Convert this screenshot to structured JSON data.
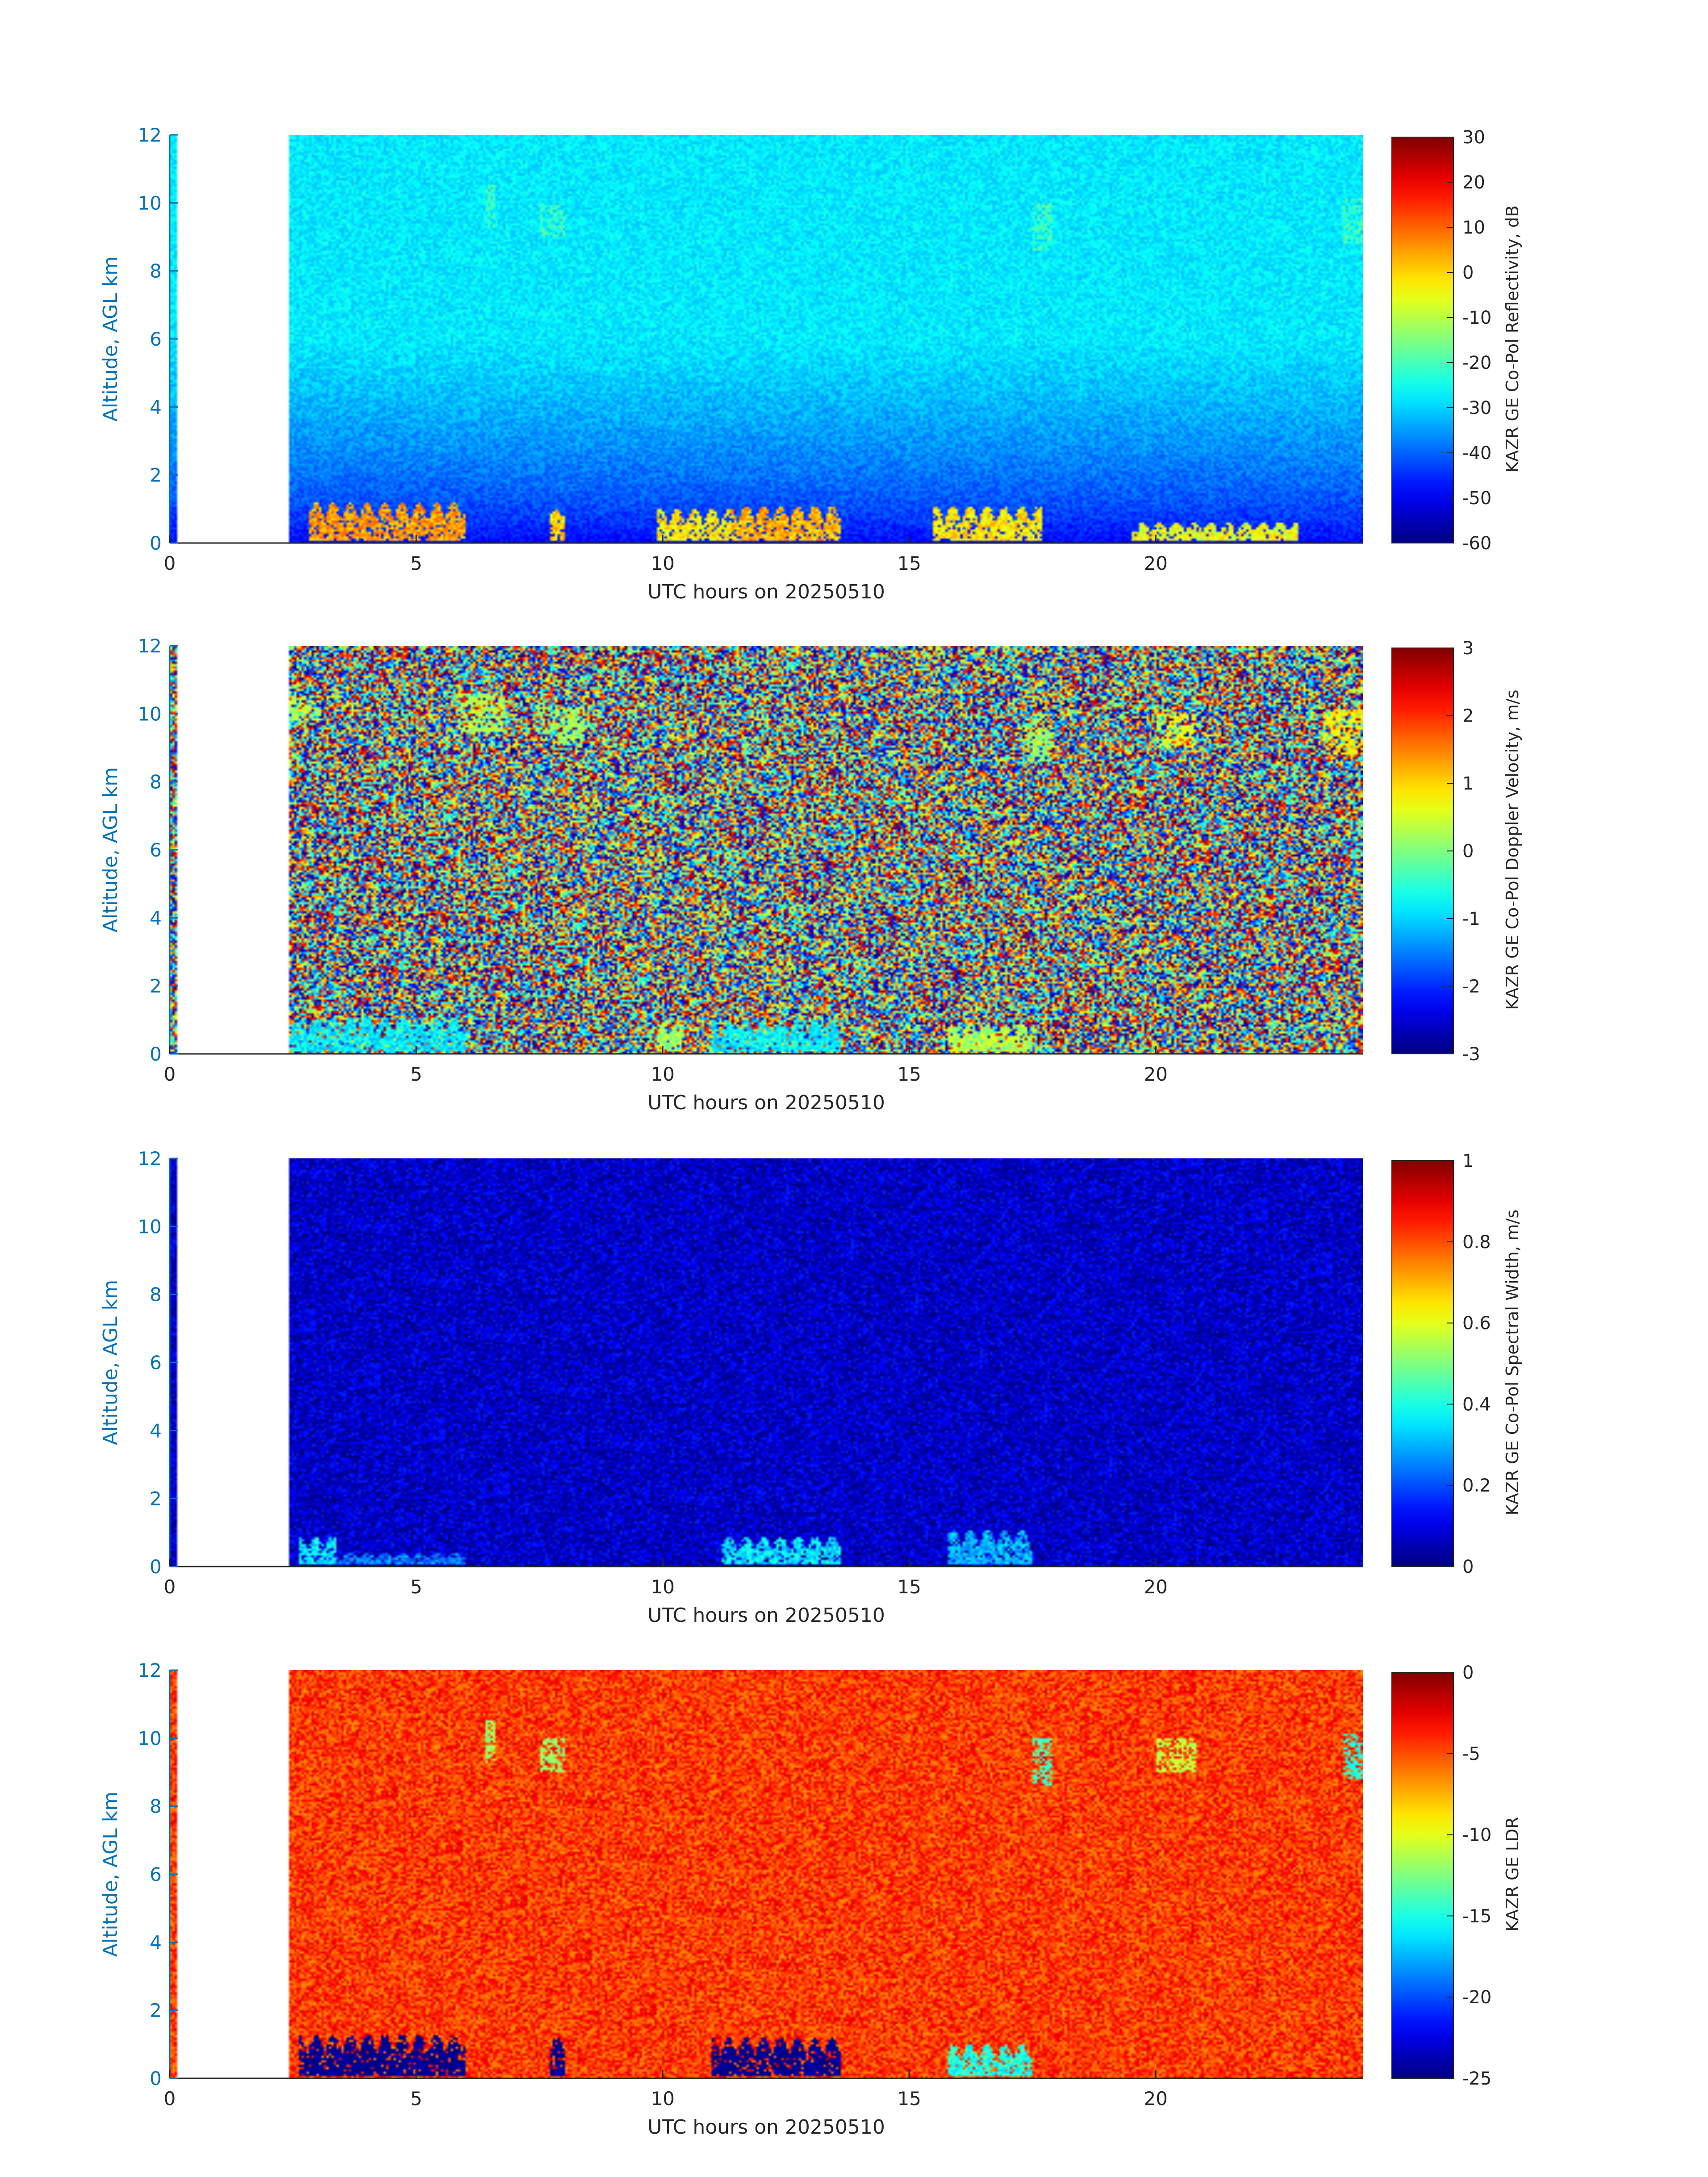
{
  "chart_data": [
    {
      "type": "heatmap",
      "xlabel": "UTC hours on 20250510",
      "ylabel": "Altitude, AGL km",
      "xlim": [
        0,
        24.2
      ],
      "ylim": [
        0,
        12
      ],
      "xticks": [
        0,
        5,
        10,
        15,
        20
      ],
      "yticks": [
        0,
        2,
        4,
        6,
        8,
        10,
        12
      ],
      "colormap": "jet",
      "colorbar": {
        "label": "KAZR GE Co-Pol Reflectivity, dB",
        "range": [
          -60,
          30
        ],
        "ticks": [
          -60,
          -50,
          -40,
          -30,
          -20,
          -10,
          0,
          10,
          20,
          30
        ]
      },
      "data_gap_hours": [
        0.15,
        2.4
      ],
      "background_level": -28,
      "near_surface_level": -50,
      "cloud_segments": [
        {
          "x": [
            2.8,
            6.0
          ],
          "y_top": 1.2,
          "level": 5
        },
        {
          "x": [
            7.7,
            8.0
          ],
          "y_top": 1.1,
          "level": 0
        },
        {
          "x": [
            9.9,
            11.4
          ],
          "y_top": 1.0,
          "level": -2
        },
        {
          "x": [
            11.4,
            13.6
          ],
          "y_top": 1.1,
          "level": 3
        },
        {
          "x": [
            15.5,
            17.7
          ],
          "y_top": 1.1,
          "level": -2
        },
        {
          "x": [
            19.5,
            22.9
          ],
          "y_top": 0.6,
          "level": -5
        }
      ],
      "high_features": [
        {
          "x": [
            6.4,
            6.6
          ],
          "y": [
            9.3,
            10.5
          ],
          "level": -20
        },
        {
          "x": [
            7.5,
            8.0
          ],
          "y": [
            9.0,
            10.0
          ],
          "level": -20
        },
        {
          "x": [
            17.5,
            17.9
          ],
          "y": [
            8.6,
            10.0
          ],
          "level": -20
        },
        {
          "x": [
            23.8,
            24.2
          ],
          "y": [
            8.8,
            10.1
          ],
          "level": -20
        }
      ]
    },
    {
      "type": "heatmap",
      "xlabel": "UTC hours on 20250510",
      "ylabel": "Altitude, AGL km",
      "xlim": [
        0,
        24.2
      ],
      "ylim": [
        0,
        12
      ],
      "xticks": [
        0,
        5,
        10,
        15,
        20
      ],
      "yticks": [
        0,
        2,
        4,
        6,
        8,
        10,
        12
      ],
      "colormap": "jet",
      "colorbar": {
        "label": "KAZR GE Co-Pol Doppler Velocity, m/s",
        "range": [
          -3,
          3
        ],
        "ticks": [
          -3,
          -2,
          -1,
          0,
          1,
          2,
          3
        ]
      },
      "data_gap_hours": [
        0.15,
        2.4
      ],
      "background": "random noise",
      "cloud_segments": [
        {
          "x": [
            2.4,
            6.0
          ],
          "y_top": 1.1,
          "level": -0.8
        },
        {
          "x": [
            9.9,
            10.4
          ],
          "y_top": 0.9,
          "level": 0.2
        },
        {
          "x": [
            11.0,
            13.6
          ],
          "y_top": 1.0,
          "level": -0.8
        },
        {
          "x": [
            15.8,
            17.5
          ],
          "y_top": 0.9,
          "level": 0.3
        }
      ],
      "high_features": [
        {
          "x": [
            2.4,
            3.1
          ],
          "y": [
            9.8,
            10.5
          ],
          "level": 0.3
        },
        {
          "x": [
            5.8,
            6.8
          ],
          "y": [
            9.5,
            10.6
          ],
          "level": 0.3
        },
        {
          "x": [
            7.4,
            8.4
          ],
          "y": [
            9.2,
            10.2
          ],
          "level": 0.2
        },
        {
          "x": [
            17.4,
            17.9
          ],
          "y": [
            8.6,
            10.0
          ],
          "level": 0.2
        },
        {
          "x": [
            20.0,
            20.8
          ],
          "y": [
            9.0,
            10.0
          ],
          "level": 0.6
        },
        {
          "x": [
            23.4,
            24.2
          ],
          "y": [
            8.8,
            10.1
          ],
          "level": 0.8
        }
      ]
    },
    {
      "type": "heatmap",
      "xlabel": "UTC hours on 20250510",
      "ylabel": "Altitude, AGL km",
      "xlim": [
        0,
        24.2
      ],
      "ylim": [
        0,
        12
      ],
      "xticks": [
        0,
        5,
        10,
        15,
        20
      ],
      "yticks": [
        0,
        2,
        4,
        6,
        8,
        10,
        12
      ],
      "colormap": "jet",
      "colorbar": {
        "label": "KAZR GE Co-Pol Spectral Width, m/s",
        "range": [
          0,
          1
        ],
        "ticks": [
          0,
          0.2,
          0.4,
          0.6,
          0.8,
          1
        ]
      },
      "data_gap_hours": [
        0.15,
        2.4
      ],
      "background_level": 0.07,
      "cloud_segments": [
        {
          "x": [
            2.6,
            3.4
          ],
          "y_top": 0.9,
          "level": 0.35
        },
        {
          "x": [
            3.4,
            6.0
          ],
          "y_top": 0.4,
          "level": 0.25
        },
        {
          "x": [
            11.2,
            13.6
          ],
          "y_top": 0.9,
          "level": 0.35
        },
        {
          "x": [
            15.8,
            17.5
          ],
          "y_top": 1.1,
          "level": 0.3
        }
      ],
      "high_features": []
    },
    {
      "type": "heatmap",
      "xlabel": "UTC hours on 20250510",
      "ylabel": "Altitude, AGL km",
      "xlim": [
        0,
        24.2
      ],
      "ylim": [
        0,
        12
      ],
      "xticks": [
        0,
        5,
        10,
        15,
        20
      ],
      "yticks": [
        0,
        2,
        4,
        6,
        8,
        10,
        12
      ],
      "colormap": "jet",
      "colorbar": {
        "label": "KAZR GE LDR",
        "ranges_note": "",
        "range": [
          -25,
          0
        ],
        "ticks": [
          -25,
          -20,
          -15,
          -10,
          -5,
          0
        ]
      },
      "data_gap_hours": [
        0.15,
        2.4
      ],
      "background_level": -4.5,
      "cloud_segments": [
        {
          "x": [
            2.6,
            6.0
          ],
          "y_top": 1.3,
          "level": -25
        },
        {
          "x": [
            7.7,
            8.0
          ],
          "y_top": 1.2,
          "level": -25
        },
        {
          "x": [
            11.0,
            13.6
          ],
          "y_top": 1.2,
          "level": -25
        },
        {
          "x": [
            15.8,
            17.5
          ],
          "y_top": 1.0,
          "level": -15
        }
      ],
      "high_features": [
        {
          "x": [
            6.4,
            6.6
          ],
          "y": [
            9.3,
            10.5
          ],
          "level": -12
        },
        {
          "x": [
            7.5,
            8.0
          ],
          "y": [
            9.0,
            10.0
          ],
          "level": -12
        },
        {
          "x": [
            17.5,
            17.9
          ],
          "y": [
            8.6,
            10.0
          ],
          "level": -14
        },
        {
          "x": [
            20.0,
            20.8
          ],
          "y": [
            9.0,
            10.0
          ],
          "level": -11
        },
        {
          "x": [
            23.8,
            24.2
          ],
          "y": [
            8.8,
            10.1
          ],
          "level": -15
        }
      ]
    }
  ]
}
